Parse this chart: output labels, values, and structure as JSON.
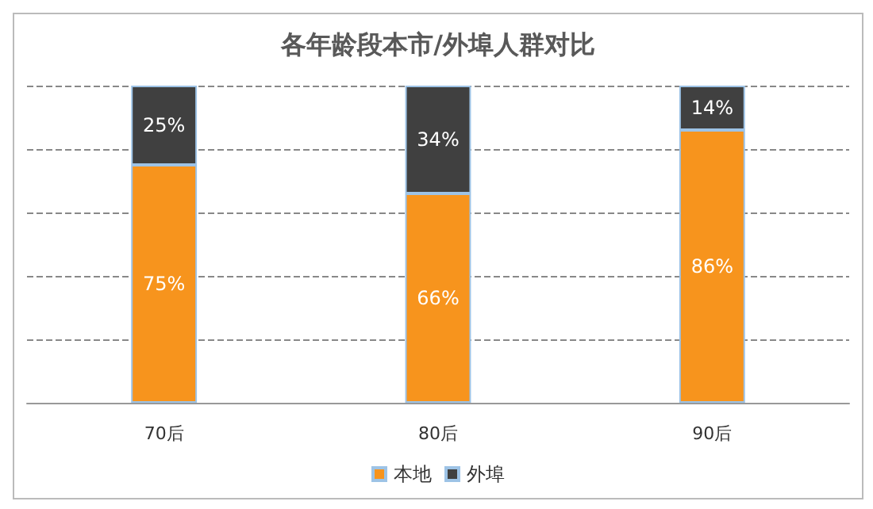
{
  "chart_data": {
    "type": "bar",
    "title": "各年龄段本市/外埠人群对比",
    "categories": [
      "70后",
      "80后",
      "90后"
    ],
    "stacked": true,
    "series": [
      {
        "name": "本地",
        "color": "#f7941d",
        "values": [
          75,
          66,
          86
        ],
        "value_labels": [
          "75%",
          "66%",
          "86%"
        ]
      },
      {
        "name": "外埠",
        "color": "#404040",
        "values": [
          25,
          34,
          14
        ],
        "value_labels": [
          "25%",
          "34%",
          "14%"
        ]
      }
    ],
    "ylim": [
      0,
      100
    ],
    "yticks": [
      {
        "value": 0,
        "label": null
      },
      {
        "value": 20,
        "label": null
      },
      {
        "value": 40,
        "label": null
      },
      {
        "value": 60,
        "label": null
      },
      {
        "value": 80,
        "label": null
      },
      {
        "value": 100,
        "label": null
      }
    ],
    "grid": "y",
    "tick_labels": "x",
    "legend": "bottom"
  }
}
